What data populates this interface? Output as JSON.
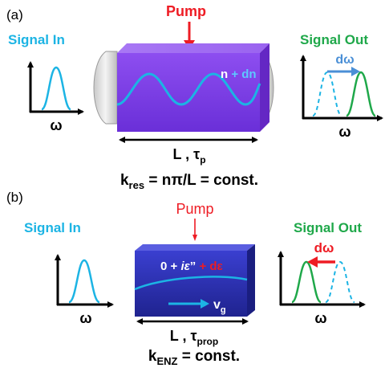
{
  "colors": {
    "signal_in": "#1cb4e4",
    "signal_out": "#1fa84a",
    "pump": "#ee1c24",
    "crystal_a": "#7c3ce6",
    "crystal_b": "#2a2fb4",
    "arrow_out_a": "#4a8fd6",
    "white": "#ffffff",
    "black": "#000000"
  },
  "panel_a": {
    "label": "(a)",
    "pump": "Pump",
    "signal_in": "Signal In",
    "signal_out": "Signal Out",
    "in_axis_label": "ω",
    "out_axis_label": "ω",
    "shift_label": "dω",
    "index_n": "n",
    "index_plus_dn": "+ dn",
    "length_main": "L , τ",
    "length_sub": "p",
    "resonance_k": "k",
    "resonance_sub": "res",
    "resonance_rest": " = nπ/L = const."
  },
  "panel_b": {
    "label": "(b)",
    "pump": "Pump",
    "signal_in": "Signal In",
    "signal_out": "Signal Out",
    "in_axis_label": "ω",
    "out_axis_label": "ω",
    "shift_label": "dω",
    "eps_zero": "0 + ",
    "eps_i": "iε",
    "eps_pp": "”",
    "eps_plus_de": " + dε",
    "vg_main": "v",
    "vg_sub": "g",
    "length_main": "L , τ",
    "length_sub": "prop",
    "enz_k": "k",
    "enz_sub": "ENZ",
    "enz_rest": " = const."
  }
}
